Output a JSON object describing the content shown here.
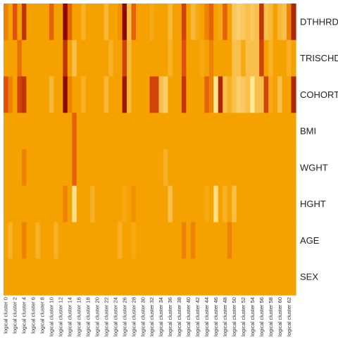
{
  "chart_data": {
    "type": "heatmap",
    "title": "",
    "xlabel": "",
    "ylabel": "",
    "legend": "none",
    "color_scale": {
      "stops": [
        {
          "level": 0.0,
          "color": "#fff0a0"
        },
        {
          "level": 0.25,
          "color": "#f9c75e"
        },
        {
          "level": 0.5,
          "color": "#f5a200"
        },
        {
          "level": 0.75,
          "color": "#e0520a"
        },
        {
          "level": 1.0,
          "color": "#8e0a00"
        }
      ]
    },
    "rows": [
      "DTHHRDY",
      "TRISCHD",
      "COHORT",
      "BMI",
      "WGHT",
      "HGHT",
      "AGE",
      "SEX"
    ],
    "columns": [
      "logical cluster 0",
      "logical cluster 1",
      "logical cluster 2",
      "logical cluster 3",
      "logical cluster 4",
      "logical cluster 5",
      "logical cluster 6",
      "logical cluster 7",
      "logical cluster 8",
      "logical cluster 9",
      "logical cluster 10",
      "logical cluster 11",
      "logical cluster 12",
      "logical cluster 13",
      "logical cluster 14",
      "logical cluster 15",
      "logical cluster 16",
      "logical cluster 17",
      "logical cluster 18",
      "logical cluster 19",
      "logical cluster 20",
      "logical cluster 21",
      "logical cluster 22",
      "logical cluster 23",
      "logical cluster 24",
      "logical cluster 25",
      "logical cluster 26",
      "logical cluster 27",
      "logical cluster 28",
      "logical cluster 29",
      "logical cluster 30",
      "logical cluster 31",
      "logical cluster 32",
      "logical cluster 33",
      "logical cluster 34",
      "logical cluster 35",
      "logical cluster 36",
      "logical cluster 37",
      "logical cluster 38",
      "logical cluster 39",
      "logical cluster 40",
      "logical cluster 41",
      "logical cluster 42",
      "logical cluster 43",
      "logical cluster 44",
      "logical cluster 45",
      "logical cluster 46",
      "logical cluster 47",
      "logical cluster 48",
      "logical cluster 49",
      "logical cluster 50",
      "logical cluster 51",
      "logical cluster 52",
      "logical cluster 53",
      "logical cluster 54",
      "logical cluster 55",
      "logical cluster 56",
      "logical cluster 57",
      "logical cluster 58",
      "logical cluster 59",
      "logical cluster 60",
      "logical cluster 61",
      "logical cluster 62",
      "logical cluster 63"
    ],
    "column_tick_labels": [
      "logical cluster 0",
      "logical cluster 2",
      "logical cluster 4",
      "logical cluster 6",
      "logical cluster 8",
      "logical cluster 10",
      "logical cluster 12",
      "logical cluster 14",
      "logical cluster 16",
      "logical cluster 18",
      "logical cluster 20",
      "logical cluster 22",
      "logical cluster 24",
      "logical cluster 26",
      "logical cluster 28",
      "logical cluster 30",
      "logical cluster 32",
      "logical cluster 34",
      "logical cluster 36",
      "logical cluster 38",
      "logical cluster 40",
      "logical cluster 42",
      "logical cluster 44",
      "logical cluster 46",
      "logical cluster 48",
      "logical cluster 50",
      "logical cluster 52",
      "logical cluster 54",
      "logical cluster 56",
      "logical cluster 58",
      "logical cluster 60",
      "logical cluster 62"
    ],
    "values": [
      [
        0.6,
        0.5,
        0.75,
        0.5,
        0.85,
        0.5,
        0.5,
        0.5,
        0.5,
        0.5,
        0.7,
        0.5,
        0.5,
        1.0,
        0.7,
        0.5,
        0.5,
        0.4,
        0.5,
        0.5,
        0.5,
        0.5,
        0.35,
        0.5,
        0.5,
        0.55,
        1.0,
        0.3,
        0.7,
        0.5,
        0.5,
        0.5,
        0.45,
        0.5,
        0.5,
        0.5,
        0.35,
        0.5,
        0.5,
        0.8,
        0.5,
        0.35,
        0.45,
        0.5,
        0.6,
        0.7,
        0.5,
        0.45,
        0.7,
        0.5,
        0.25,
        0.2,
        0.25,
        0.3,
        0.25,
        0.3,
        0.85,
        0.3,
        0.35,
        0.5,
        0.35,
        0.3,
        0.6,
        0.9
      ],
      [
        0.5,
        0.5,
        0.5,
        0.65,
        0.5,
        0.5,
        0.5,
        0.5,
        0.5,
        0.5,
        0.5,
        0.5,
        0.5,
        0.85,
        0.5,
        0.3,
        0.5,
        0.5,
        0.5,
        0.5,
        0.5,
        0.5,
        0.5,
        0.4,
        0.5,
        0.5,
        0.8,
        0.35,
        0.5,
        0.5,
        0.5,
        0.5,
        0.5,
        0.5,
        0.5,
        0.5,
        0.4,
        0.5,
        0.5,
        0.75,
        0.5,
        0.5,
        0.5,
        0.45,
        0.5,
        0.6,
        0.5,
        0.5,
        0.5,
        0.5,
        0.3,
        0.3,
        0.45,
        0.3,
        0.3,
        0.3,
        0.8,
        0.5,
        0.4,
        0.5,
        0.5,
        0.5,
        0.4,
        0.5
      ],
      [
        0.75,
        0.6,
        0.5,
        0.8,
        0.85,
        0.5,
        0.5,
        0.5,
        0.5,
        0.5,
        0.35,
        0.5,
        0.5,
        1.0,
        0.6,
        0.5,
        0.5,
        0.4,
        0.5,
        0.5,
        0.5,
        0.5,
        0.35,
        0.5,
        0.5,
        0.5,
        0.95,
        0.35,
        0.5,
        0.5,
        0.5,
        0.5,
        0.8,
        0.8,
        0.3,
        0.2,
        0.5,
        0.5,
        0.5,
        0.85,
        0.5,
        0.5,
        0.5,
        0.5,
        0.7,
        0.6,
        0.05,
        0.9,
        0.3,
        0.4,
        0.3,
        0.2,
        0.25,
        0.3,
        0.05,
        0.3,
        0.3,
        0.8,
        0.45,
        0.5,
        0.3,
        0.5,
        0.5,
        0.9
      ],
      [
        0.5,
        0.5,
        0.5,
        0.5,
        0.5,
        0.5,
        0.5,
        0.5,
        0.5,
        0.5,
        0.5,
        0.5,
        0.5,
        0.5,
        0.5,
        0.7,
        0.5,
        0.5,
        0.5,
        0.5,
        0.5,
        0.5,
        0.5,
        0.5,
        0.5,
        0.5,
        0.5,
        0.5,
        0.5,
        0.5,
        0.5,
        0.5,
        0.5,
        0.5,
        0.5,
        0.5,
        0.5,
        0.5,
        0.5,
        0.5,
        0.5,
        0.5,
        0.5,
        0.5,
        0.5,
        0.5,
        0.5,
        0.5,
        0.5,
        0.5,
        0.5,
        0.5,
        0.5,
        0.5,
        0.5,
        0.5,
        0.5,
        0.5,
        0.5,
        0.5,
        0.5,
        0.5,
        0.5,
        0.5
      ],
      [
        0.5,
        0.5,
        0.5,
        0.5,
        0.6,
        0.5,
        0.5,
        0.5,
        0.5,
        0.5,
        0.5,
        0.5,
        0.5,
        0.5,
        0.5,
        0.7,
        0.5,
        0.5,
        0.5,
        0.5,
        0.5,
        0.5,
        0.5,
        0.5,
        0.5,
        0.5,
        0.5,
        0.5,
        0.5,
        0.5,
        0.5,
        0.5,
        0.5,
        0.5,
        0.5,
        0.4,
        0.5,
        0.5,
        0.5,
        0.5,
        0.5,
        0.5,
        0.5,
        0.5,
        0.5,
        0.5,
        0.5,
        0.5,
        0.5,
        0.5,
        0.5,
        0.5,
        0.5,
        0.5,
        0.5,
        0.5,
        0.5,
        0.5,
        0.5,
        0.5,
        0.5,
        0.5,
        0.5,
        0.5
      ],
      [
        0.5,
        0.5,
        0.5,
        0.5,
        0.5,
        0.5,
        0.5,
        0.5,
        0.5,
        0.5,
        0.5,
        0.5,
        0.5,
        0.6,
        0.5,
        0.1,
        0.5,
        0.5,
        0.5,
        0.4,
        0.5,
        0.5,
        0.5,
        0.5,
        0.5,
        0.5,
        0.45,
        0.5,
        0.55,
        0.5,
        0.5,
        0.5,
        0.5,
        0.5,
        0.5,
        0.5,
        0.3,
        0.5,
        0.5,
        0.5,
        0.5,
        0.5,
        0.5,
        0.5,
        0.45,
        0.5,
        0.1,
        0.5,
        0.4,
        0.5,
        0.3,
        0.5,
        0.5,
        0.5,
        0.5,
        0.5,
        0.5,
        0.5,
        0.5,
        0.5,
        0.5,
        0.5,
        0.5,
        0.5
      ],
      [
        0.5,
        0.4,
        0.5,
        0.5,
        0.6,
        0.5,
        0.5,
        0.4,
        0.5,
        0.5,
        0.5,
        0.4,
        0.5,
        0.5,
        0.5,
        0.5,
        0.5,
        0.5,
        0.5,
        0.5,
        0.5,
        0.5,
        0.5,
        0.5,
        0.5,
        0.4,
        0.5,
        0.5,
        0.45,
        0.5,
        0.5,
        0.5,
        0.5,
        0.5,
        0.5,
        0.5,
        0.5,
        0.5,
        0.5,
        0.6,
        0.5,
        0.6,
        0.5,
        0.5,
        0.5,
        0.5,
        0.5,
        0.5,
        0.5,
        0.6,
        0.5,
        0.5,
        0.5,
        0.5,
        0.5,
        0.5,
        0.5,
        0.5,
        0.5,
        0.5,
        0.5,
        0.5,
        0.5,
        0.5
      ],
      [
        0.5,
        0.5,
        0.5,
        0.5,
        0.5,
        0.5,
        0.5,
        0.5,
        0.5,
        0.5,
        0.5,
        0.5,
        0.5,
        0.5,
        0.5,
        0.5,
        0.5,
        0.5,
        0.5,
        0.5,
        0.5,
        0.5,
        0.5,
        0.5,
        0.5,
        0.5,
        0.5,
        0.5,
        0.5,
        0.5,
        0.5,
        0.5,
        0.5,
        0.5,
        0.5,
        0.5,
        0.5,
        0.5,
        0.5,
        0.5,
        0.5,
        0.5,
        0.5,
        0.5,
        0.5,
        0.5,
        0.5,
        0.5,
        0.5,
        0.5,
        0.5,
        0.5,
        0.5,
        0.5,
        0.5,
        0.5,
        0.5,
        0.5,
        0.5,
        0.5,
        0.5,
        0.5,
        0.5,
        0.5
      ]
    ]
  }
}
